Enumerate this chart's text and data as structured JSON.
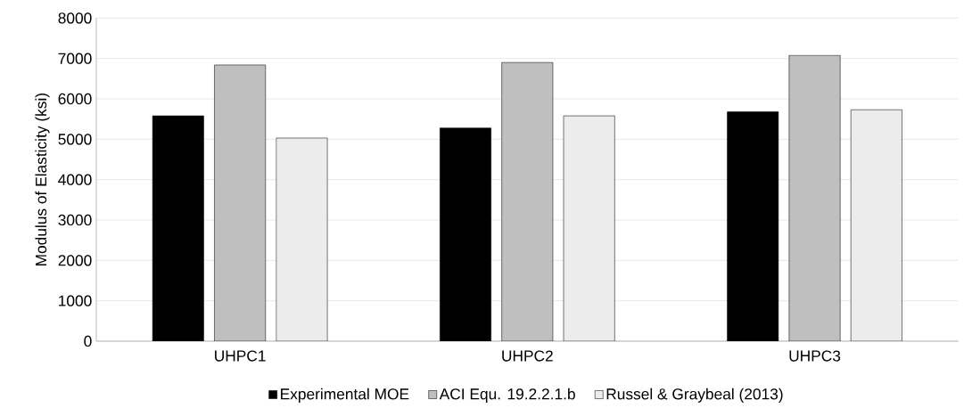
{
  "chart_data": {
    "type": "bar",
    "ylabel": "Modulus of Elasticity (ksi)",
    "categories": [
      "UHPC1",
      "UHPC2",
      "UHPC3"
    ],
    "series": [
      {
        "name": "Experimental MOE",
        "color": "#000000",
        "values": [
          5580,
          5280,
          5680
        ]
      },
      {
        "name": "ACI Equ. 19.2.2.1.b",
        "color": "#bfbfbf",
        "values": [
          6840,
          6900,
          7080
        ]
      },
      {
        "name": "Russel & Graybeal (2013)",
        "color": "#ececec",
        "values": [
          5030,
          5580,
          5730
        ]
      }
    ],
    "ylim": [
      0,
      8000
    ],
    "yticks": [
      0,
      1000,
      2000,
      3000,
      4000,
      5000,
      6000,
      7000,
      8000
    ],
    "grid": "y",
    "legend": "bottom"
  }
}
